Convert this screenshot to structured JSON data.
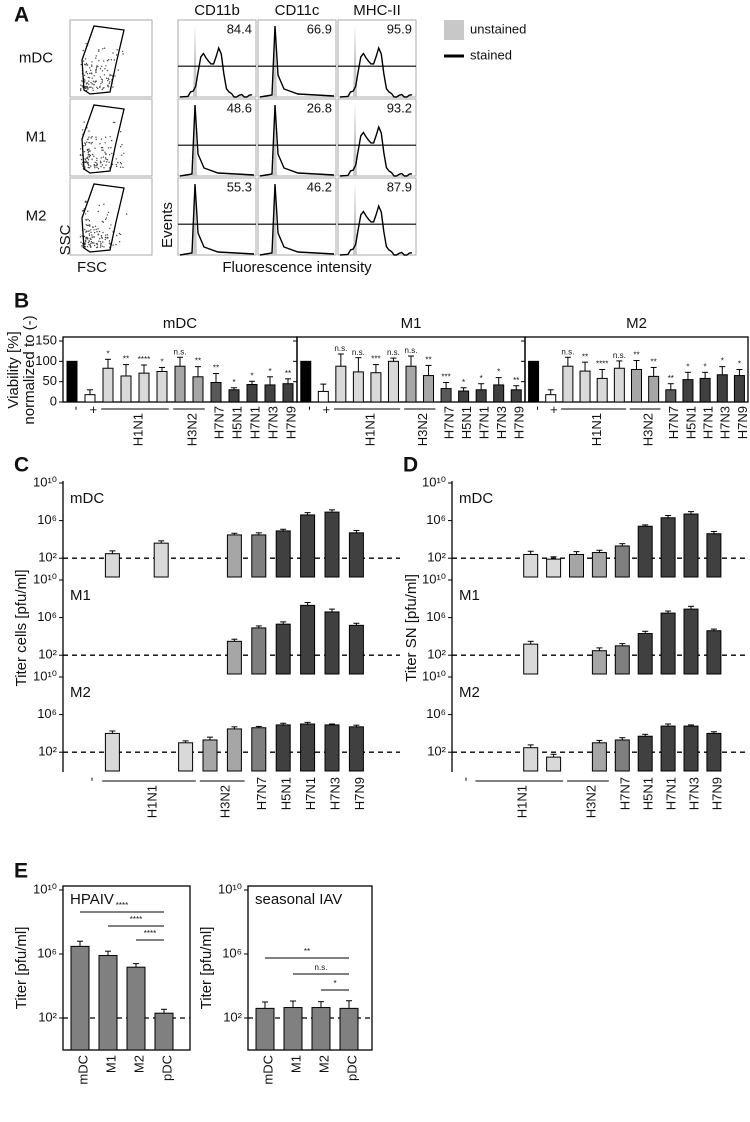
{
  "chart_data": [
    {
      "type": "flow",
      "panel": "A",
      "rows": [
        "mDC",
        "M1",
        "M2"
      ],
      "columns": [
        "CD11b",
        "CD11c",
        "MHC-II"
      ],
      "values": [
        [
          84.4,
          66.9,
          95.9
        ],
        [
          48.6,
          26.8,
          93.2
        ],
        [
          55.3,
          46.2,
          87.9
        ]
      ],
      "scatter_xlabel": "FSC",
      "scatter_ylabel": "SSC",
      "xlabel": "Fluorescence intensity",
      "ylabel": "Events",
      "legend": [
        {
          "name": "unstained",
          "color": "#c8c8c8"
        },
        {
          "name": "stained",
          "color": "#000000"
        }
      ]
    },
    {
      "type": "bar",
      "panel": "B",
      "log": false,
      "ylabel": [
        "Viability [%]",
        "normalized to (-)"
      ],
      "ylim": [
        0,
        150
      ],
      "yticks": [
        0,
        50,
        100,
        150
      ],
      "categories": [
        "-",
        "+",
        null,
        null,
        null,
        null,
        null,
        null,
        "H7N7",
        "H5N1",
        "H7N1",
        "H7N3",
        "H7N9"
      ],
      "groups": [
        {
          "label": "H1N1",
          "from": 2,
          "to": 5
        },
        {
          "label": "H3N2",
          "from": 6,
          "to": 7
        }
      ],
      "colors": [
        "#000000",
        "#ffffff",
        "#d9d9d9",
        "#d9d9d9",
        "#d9d9d9",
        "#d9d9d9",
        "#a6a6a6",
        "#a6a6a6",
        "#595959",
        "#404040",
        "#404040",
        "#404040",
        "#404040"
      ],
      "facets": [
        {
          "title": "mDC",
          "values": [
            100,
            18,
            83,
            64,
            71,
            75,
            88,
            62,
            48,
            30,
            43,
            42,
            45
          ],
          "errors": [
            null,
            12,
            22,
            28,
            20,
            10,
            22,
            25,
            22,
            5,
            8,
            20,
            12
          ],
          "annotations": [
            null,
            null,
            "*",
            "**",
            "****",
            "*",
            "n.s.",
            "**",
            "**",
            "*",
            "*",
            "*",
            "**"
          ]
        },
        {
          "title": "M1",
          "values": [
            100,
            26,
            88,
            74,
            72,
            100,
            88,
            65,
            33,
            27,
            30,
            42,
            30
          ],
          "errors": [
            null,
            18,
            30,
            35,
            20,
            8,
            25,
            25,
            15,
            8,
            15,
            18,
            10
          ],
          "annotations": [
            null,
            null,
            "n.s.",
            "n.s.",
            "***",
            "n.s.",
            "n.s.",
            "**",
            "***",
            "*",
            "*",
            "*",
            "**"
          ]
        },
        {
          "title": "M2",
          "values": [
            100,
            18,
            88,
            76,
            58,
            83,
            80,
            63,
            30,
            55,
            58,
            67,
            65
          ],
          "errors": [
            null,
            12,
            22,
            22,
            22,
            18,
            22,
            22,
            15,
            18,
            15,
            20,
            15
          ],
          "annotations": [
            null,
            null,
            "n.s.",
            "**",
            "****",
            "n.s.",
            "**",
            "**",
            "**",
            "*",
            "*",
            "*",
            "*"
          ]
        }
      ]
    },
    {
      "type": "bar",
      "panel": "C",
      "log": true,
      "ylabel": [
        "Titer cells [pfu/ml]"
      ],
      "ylim": [
        1,
        10000000000
      ],
      "yticks": [
        {
          "value": 100,
          "label": "10²"
        },
        {
          "value": 1000000,
          "label": "10⁶"
        },
        {
          "value": 10000000000,
          "label": "10¹⁰"
        }
      ],
      "threshold": 100,
      "categories": [
        "-",
        null,
        null,
        null,
        null,
        null,
        null,
        "H7N7",
        "H5N1",
        "H7N1",
        "H7N3",
        "H7N9"
      ],
      "groups": [
        {
          "label": "H1N1",
          "from": 1,
          "to": 4
        },
        {
          "label": "H3N2",
          "from": 5,
          "to": 6
        }
      ],
      "colors": [
        "#d9d9d9",
        "#d9d9d9",
        "#d9d9d9",
        "#d9d9d9",
        "#d9d9d9",
        "#a6a6a6",
        "#a6a6a6",
        "#7f7f7f",
        "#404040",
        "#404040",
        "#404040",
        "#404040"
      ],
      "facets": [
        {
          "title": "mDC",
          "values": [
            null,
            300,
            null,
            4000,
            null,
            null,
            30000,
            30000,
            80000,
            4000000,
            8000000,
            50000
          ],
          "errors": [
            null,
            300,
            null,
            3000,
            null,
            null,
            15000,
            20000,
            40000,
            3000000,
            6000000,
            40000
          ]
        },
        {
          "title": "M1",
          "values": [
            null,
            null,
            null,
            null,
            null,
            null,
            3000,
            80000,
            200000,
            20000000,
            4000000,
            150000
          ],
          "errors": [
            null,
            null,
            null,
            null,
            null,
            null,
            2000,
            50000,
            150000,
            20000000,
            4000000,
            100000
          ]
        },
        {
          "title": "M2",
          "values": [
            null,
            10000,
            null,
            null,
            1000,
            2000,
            30000,
            40000,
            80000,
            100000,
            80000,
            50000
          ],
          "errors": [
            null,
            8000,
            null,
            null,
            600,
            2000,
            20000,
            15000,
            40000,
            50000,
            20000,
            25000
          ]
        }
      ]
    },
    {
      "type": "bar",
      "panel": "D",
      "log": true,
      "ylabel": [
        "Titer SN [pfu/ml]"
      ],
      "ylim": [
        1,
        10000000000
      ],
      "yticks": [
        {
          "value": 100,
          "label": "10²"
        },
        {
          "value": 1000000,
          "label": "10⁶"
        },
        {
          "value": 10000000000,
          "label": "10¹⁰"
        }
      ],
      "threshold": 100,
      "categories": [
        "-",
        null,
        null,
        null,
        null,
        null,
        null,
        "H7N7",
        "H5N1",
        "H7N1",
        "H7N3",
        "H7N9"
      ],
      "groups": [
        {
          "label": "H1N1",
          "from": 1,
          "to": 4
        },
        {
          "label": "H3N2",
          "from": 5,
          "to": 6
        }
      ],
      "colors": [
        "#d9d9d9",
        "#d9d9d9",
        "#d9d9d9",
        "#d9d9d9",
        "#d9d9d9",
        "#a6a6a6",
        "#a6a6a6",
        "#7f7f7f",
        "#404040",
        "#404040",
        "#404040",
        "#404040"
      ],
      "facets": [
        {
          "title": "mDC",
          "values": [
            null,
            null,
            null,
            250,
            80,
            250,
            400,
            2000,
            250000,
            2000000,
            5000000,
            40000
          ],
          "errors": [
            null,
            null,
            null,
            300,
            60,
            250,
            300,
            1500,
            100000,
            1500000,
            4000000,
            30000
          ]
        },
        {
          "title": "M1",
          "values": [
            null,
            null,
            null,
            1500,
            null,
            null,
            300,
            1000,
            20000,
            3000000,
            8000000,
            40000
          ],
          "errors": [
            null,
            null,
            null,
            1500,
            null,
            null,
            300,
            700,
            15000,
            2000000,
            8000000,
            20000
          ]
        },
        {
          "title": "M2",
          "values": [
            null,
            null,
            null,
            300,
            30,
            null,
            1000,
            2000,
            5000,
            60000,
            60000,
            10000
          ],
          "errors": [
            null,
            null,
            null,
            300,
            30,
            null,
            800,
            1500,
            3000,
            40000,
            20000,
            5000
          ]
        }
      ]
    },
    {
      "type": "bar",
      "panel": "E",
      "log": true,
      "ylabel": [
        "Titer [pfu/ml]"
      ],
      "ylim": [
        1,
        10000000000
      ],
      "yticks": [
        {
          "value": 100,
          "label": "10²"
        },
        {
          "value": 1000000,
          "label": "10⁶"
        },
        {
          "value": 10000000000,
          "label": "10¹⁰"
        }
      ],
      "threshold": 100,
      "categories": [
        "mDC",
        "M1",
        "M2",
        "pDC"
      ],
      "colors": [
        "#808080",
        "#808080",
        "#808080",
        "#808080"
      ],
      "facets": [
        {
          "title": "HPAIV",
          "values": [
            3000000,
            800000,
            150000,
            200
          ],
          "errors": [
            3300000,
            700000,
            100000,
            150
          ]
        }
      ],
      "comparisons": [
        {
          "from": 0,
          "to": 3,
          "label": "****"
        },
        {
          "from": 1,
          "to": 3,
          "label": "****"
        },
        {
          "from": 2,
          "to": 3,
          "label": "****"
        }
      ]
    },
    {
      "type": "bar",
      "log": true,
      "ylabel": [
        "Titer [pfu/ml]"
      ],
      "ylim": [
        1,
        10000000000
      ],
      "yticks": [
        {
          "value": 100,
          "label": "10²"
        },
        {
          "value": 1000000,
          "label": "10⁶"
        },
        {
          "value": 10000000000,
          "label": "10¹⁰"
        }
      ],
      "threshold": 100,
      "categories": [
        "mDC",
        "M1",
        "M2",
        "pDC"
      ],
      "colors": [
        "#808080",
        "#808080",
        "#808080",
        "#808080"
      ],
      "facets": [
        {
          "title": "seasonal IAV",
          "values": [
            400,
            450,
            450,
            400
          ],
          "errors": [
            600,
            700,
            600,
            800
          ]
        }
      ],
      "comparisons": [
        {
          "from": 0,
          "to": 3,
          "label": "**"
        },
        {
          "from": 1,
          "to": 3,
          "label": "n.s."
        },
        {
          "from": 2,
          "to": 3,
          "label": "*"
        }
      ]
    }
  ]
}
